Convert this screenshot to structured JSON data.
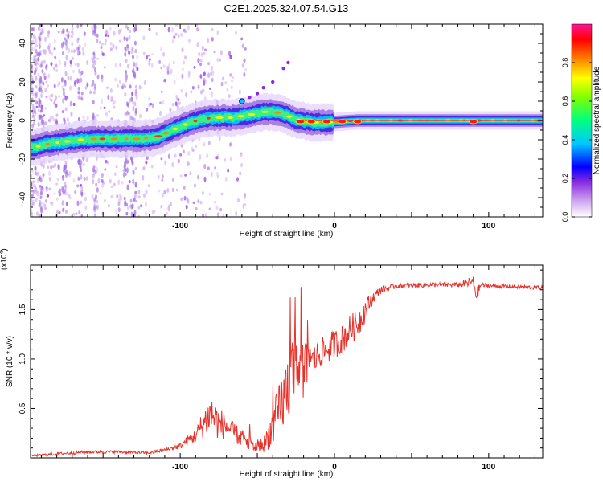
{
  "title": "C2E1.2025.324.07.54.G13",
  "chart_data": [
    {
      "id": "spectrogram",
      "type": "heatmap",
      "xlabel": "Height of straight line (km)",
      "ylabel": "Frequency (Hz)",
      "xlim": [
        -197,
        135
      ],
      "ylim": [
        -50,
        50
      ],
      "xticks": [
        -100,
        0,
        100
      ],
      "yticks": [
        -40,
        -20,
        0,
        20,
        40
      ],
      "colorbar": {
        "label": "Normalized spectral amplitude",
        "range": [
          0,
          1
        ],
        "ticks": [
          "0.0",
          "0.2",
          "0.4",
          "0.6",
          "0.8"
        ],
        "stops": [
          "#ffffff",
          "#cfa8f0",
          "#8a2be2",
          "#0000ff",
          "#00c8ff",
          "#00ff80",
          "#80ff00",
          "#ffff00",
          "#ff8000",
          "#ff0000",
          "#ff1493"
        ]
      },
      "ridge_track": {
        "x": [
          -195,
          -185,
          -175,
          -165,
          -155,
          -145,
          -135,
          -125,
          -115,
          -105,
          -95,
          -85,
          -75,
          -65,
          -55,
          -45,
          -35,
          -25,
          -15,
          -5,
          5,
          15,
          25,
          50,
          75,
          100,
          135
        ],
        "y": [
          -14,
          -12,
          -11,
          -10,
          -9.5,
          -9.5,
          -9.5,
          -9.5,
          -8.5,
          -5,
          -1.5,
          1,
          1.5,
          1.5,
          3,
          4.5,
          4,
          0.5,
          -1,
          -1,
          -0.5,
          0,
          0,
          0,
          0,
          0,
          0
        ]
      },
      "harmonic_points": {
        "x": [
          -60,
          -55,
          -50,
          -46,
          -40,
          -33,
          -30
        ],
        "y": [
          10,
          12,
          14,
          17,
          20,
          27,
          30
        ]
      }
    },
    {
      "id": "snr",
      "type": "line",
      "xlabel": "Height of straight line (km)",
      "ylabel": "SNR (10 * v/v)",
      "multiplier_label": "(x10",
      "multiplier_exponent": "4",
      "multiplier_close": ")",
      "xlim": [
        -197,
        135
      ],
      "ylim": [
        0,
        1.95
      ],
      "xticks": [
        -100,
        0,
        100
      ],
      "yticks": [
        "0.5",
        "1.0",
        "1.5"
      ],
      "ytick_values": [
        0.5,
        1.0,
        1.5
      ],
      "line_color": "#e8312a",
      "series": {
        "x": [
          -197,
          -180,
          -160,
          -140,
          -120,
          -110,
          -100,
          -95,
          -90,
          -85,
          -80,
          -75,
          -70,
          -65,
          -60,
          -55,
          -50,
          -45,
          -40,
          -35,
          -30,
          -25,
          -20,
          -15,
          -10,
          -5,
          0,
          5,
          10,
          15,
          20,
          25,
          30,
          40,
          60,
          80,
          90,
          92,
          95,
          100,
          120,
          135
        ],
        "y": [
          0.02,
          0.04,
          0.06,
          0.06,
          0.05,
          0.08,
          0.12,
          0.18,
          0.22,
          0.35,
          0.45,
          0.35,
          0.32,
          0.25,
          0.2,
          0.14,
          0.1,
          0.15,
          0.32,
          0.5,
          0.75,
          0.9,
          0.88,
          0.95,
          1.05,
          1.1,
          1.15,
          1.2,
          1.3,
          1.35,
          1.5,
          1.62,
          1.7,
          1.74,
          1.75,
          1.75,
          1.78,
          1.65,
          1.75,
          1.74,
          1.73,
          1.72
        ],
        "noise_amp": [
          0.02,
          0.03,
          0.03,
          0.03,
          0.03,
          0.04,
          0.06,
          0.1,
          0.15,
          0.3,
          0.4,
          0.35,
          0.25,
          0.2,
          0.2,
          0.15,
          0.12,
          0.18,
          0.4,
          0.6,
          0.7,
          0.75,
          0.6,
          0.35,
          0.3,
          0.3,
          0.3,
          0.3,
          0.3,
          0.3,
          0.25,
          0.12,
          0.08,
          0.05,
          0.05,
          0.05,
          0.12,
          0.15,
          0.05,
          0.04,
          0.04,
          0.04
        ]
      }
    }
  ]
}
